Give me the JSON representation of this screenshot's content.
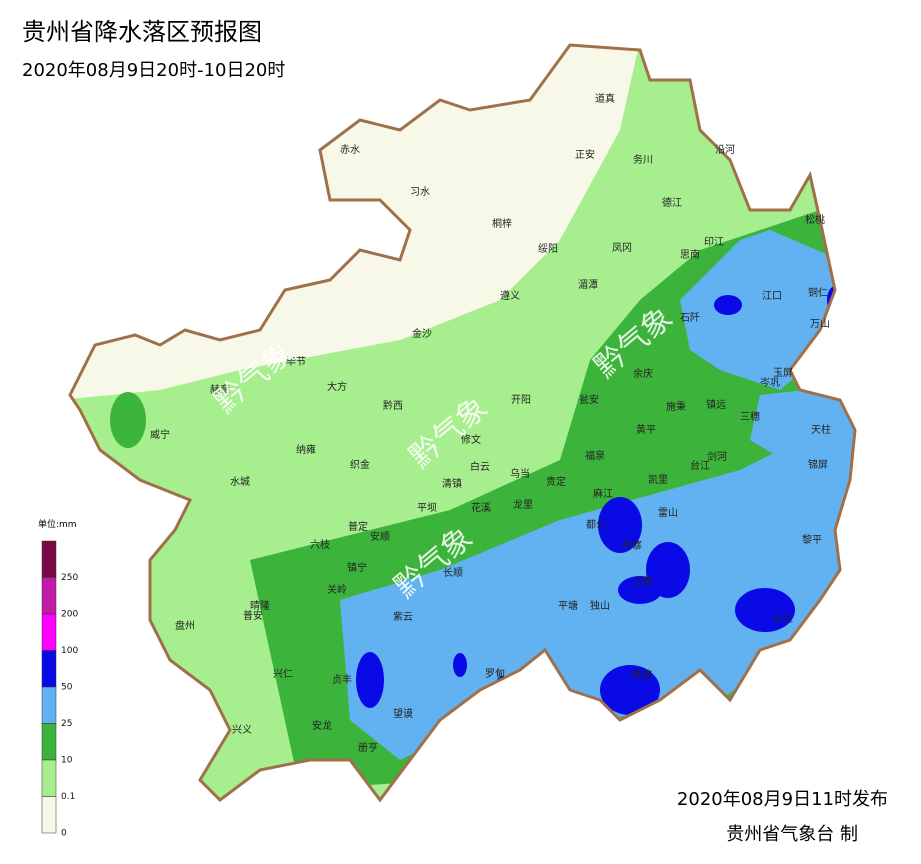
{
  "header": {
    "title": "贵州省降水落区预报图",
    "subtitle": "2020年08月9日20时-10日20时"
  },
  "legend": {
    "unit": "单位:mm",
    "items": [
      {
        "color": "#7a0a45",
        "label": "250"
      },
      {
        "color": "#c21ba8",
        "label": "200"
      },
      {
        "color": "#ff00ff",
        "label": "100"
      },
      {
        "color": "#0a0ae6",
        "label": "50"
      },
      {
        "color": "#62b2f2",
        "label": "25"
      },
      {
        "color": "#3cb43c",
        "label": "10"
      },
      {
        "color": "#a6ee8e",
        "label": "0.1"
      },
      {
        "color": "#f8f8e8",
        "label": "0"
      }
    ]
  },
  "watermark": "黔气象",
  "counties": [
    "道真",
    "赤水",
    "正安",
    "务川",
    "沿河",
    "习水",
    "德江",
    "松桃",
    "桐梓",
    "绥阳",
    "凤冈",
    "印江",
    "思南",
    "江口",
    "铜仁",
    "湄潭",
    "遵义",
    "石阡",
    "万山",
    "金沙",
    "毕节",
    "大方",
    "余庆",
    "玉屏",
    "岑巩",
    "赫章",
    "开阳",
    "瓮安",
    "施秉",
    "镇远",
    "三穗",
    "黔西",
    "天柱",
    "威宁",
    "修文",
    "黄平",
    "剑河",
    "锦屏",
    "纳雍",
    "织金",
    "白云",
    "乌当",
    "福泉",
    "台江",
    "清镇",
    "贵定",
    "水城",
    "麻江",
    "凯里",
    "平坝",
    "花溪",
    "龙里",
    "雷山",
    "普定",
    "安顺",
    "都匀",
    "丹寨",
    "黎平",
    "六枝",
    "长顺",
    "镇宁",
    "三都",
    "关岭",
    "平塘",
    "独山",
    "晴隆",
    "紫云",
    "盘州",
    "普安",
    "从江",
    "兴仁",
    "贞丰",
    "罗甸",
    "荔波",
    "望谟",
    "兴义",
    "安龙",
    "册亨"
  ],
  "footer": {
    "issued": "2020年08月9日11时发布",
    "issuer": "贵州省气象台 制"
  }
}
